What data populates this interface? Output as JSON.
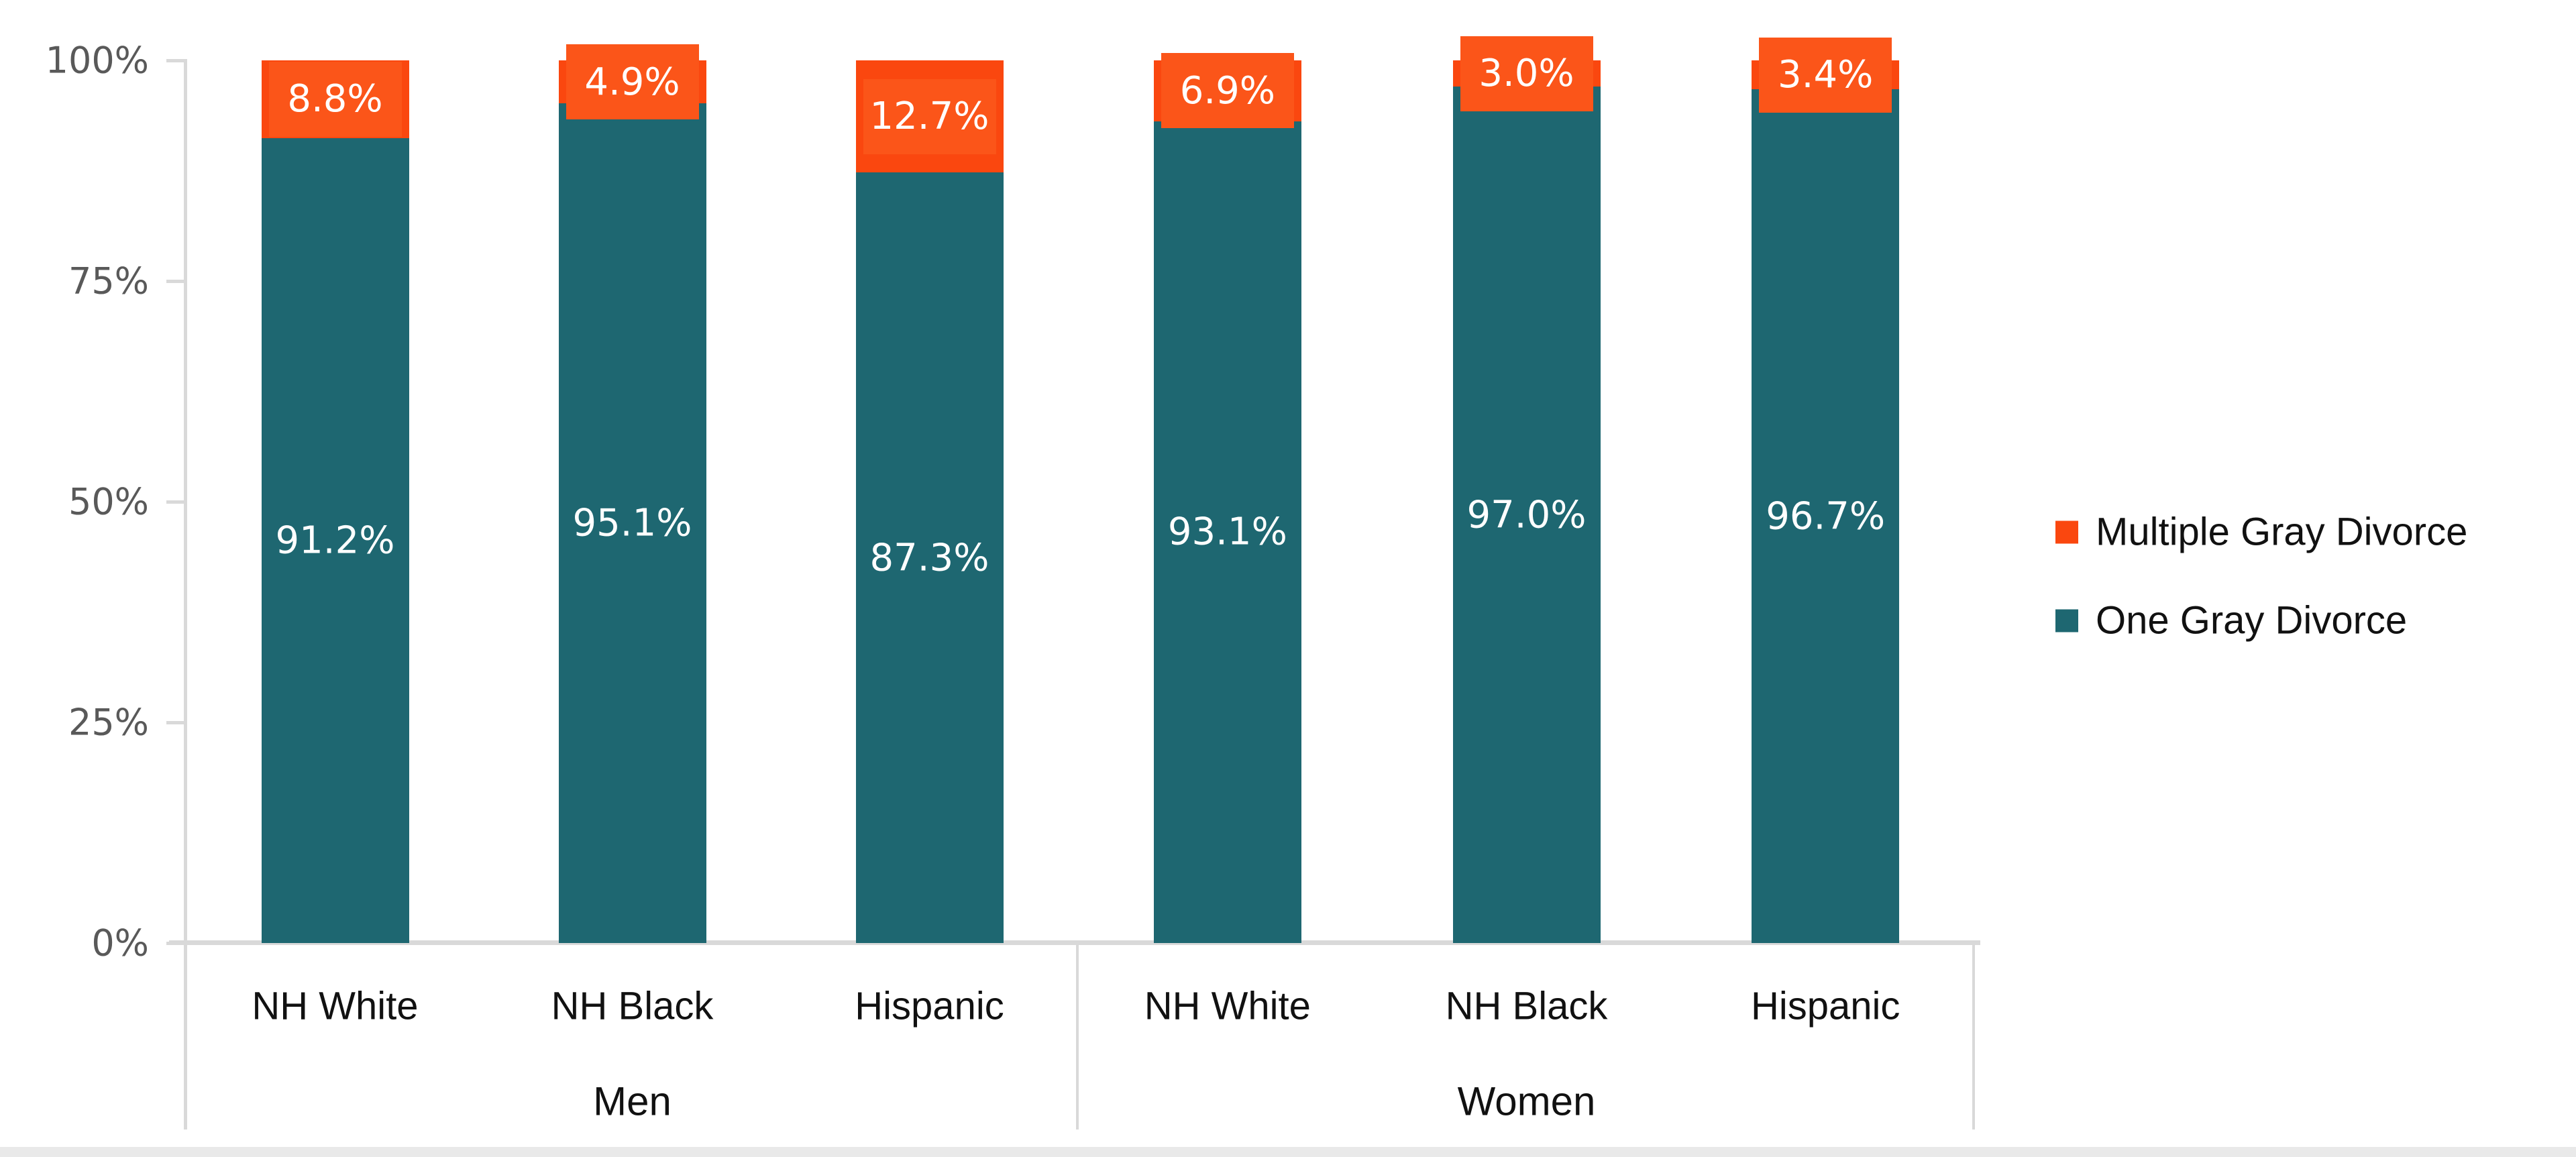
{
  "chart_data": {
    "type": "bar",
    "subtype": "stacked-percent",
    "groups": [
      {
        "label": "Men",
        "categories": [
          "NH White",
          "NH Black",
          "Hispanic"
        ]
      },
      {
        "label": "Women",
        "categories": [
          "NH White",
          "NH Black",
          "Hispanic"
        ]
      }
    ],
    "categories_flat": [
      "NH White",
      "NH Black",
      "Hispanic",
      "NH White",
      "NH Black",
      "Hispanic"
    ],
    "series": [
      {
        "name": "One Gray Divorce",
        "color": "#1e6771",
        "values": [
          91.2,
          95.1,
          87.3,
          93.1,
          97.0,
          96.7
        ],
        "labels": [
          "91.2%",
          "95.1%",
          "87.3%",
          "93.1%",
          "97.0%",
          "96.7%"
        ]
      },
      {
        "name": "Multiple Gray Divorce",
        "color": "#fa470f",
        "label_box_color": "#fb5519",
        "values": [
          8.8,
          4.9,
          12.7,
          6.9,
          3.0,
          3.4
        ],
        "labels": [
          "8.8%",
          "4.9%",
          "12.7%",
          "6.9%",
          "3.0%",
          "3.4%"
        ]
      }
    ],
    "y_axis": {
      "ticks": [
        "0%",
        "25%",
        "50%",
        "75%",
        "100%"
      ],
      "tick_values": [
        0,
        25,
        50,
        75,
        100
      ],
      "range": [
        0,
        100
      ],
      "grid": false
    },
    "legend": {
      "position": "right",
      "entries": [
        {
          "label": "Multiple Gray Divorce",
          "color": "#fa470f"
        },
        {
          "label": "One Gray Divorce",
          "color": "#1e6771"
        }
      ]
    },
    "title": "",
    "xlabel": "",
    "ylabel": ""
  },
  "colors": {
    "teal": "#1e6771",
    "orange": "#fa470f",
    "orange_label_box": "#fb5519",
    "axis_line": "#d9d9d9",
    "tick_text": "#595959",
    "label_text": "#111111",
    "bottom_strip": "#e9e9e9"
  }
}
